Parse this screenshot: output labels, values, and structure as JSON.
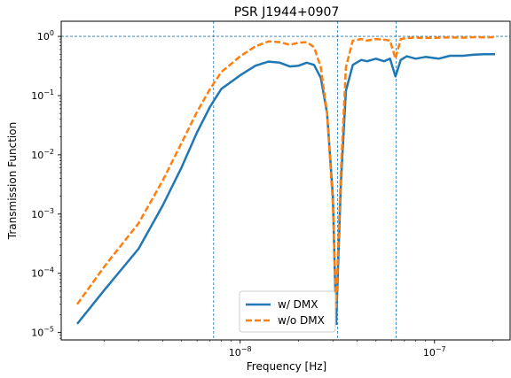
{
  "chart_data": {
    "type": "line",
    "title": "PSR J1944+0907",
    "xlabel": "Frequency [Hz]",
    "ylabel": "Transmission Function",
    "xscale": "log",
    "yscale": "log",
    "xlim": [
      1.2e-09,
      2.45e-07
    ],
    "ylim": [
      7.5e-06,
      1.8
    ],
    "x_ticks": [
      {
        "value": 1e-08,
        "base": "10",
        "exp": "−8"
      },
      {
        "value": 1e-07,
        "base": "10",
        "exp": "−7"
      }
    ],
    "y_ticks": [
      {
        "value": 1,
        "base": "10",
        "exp": "0"
      },
      {
        "value": 0.1,
        "base": "10",
        "exp": "−1"
      },
      {
        "value": 0.01,
        "base": "10",
        "exp": "−2"
      },
      {
        "value": 0.001,
        "base": "10",
        "exp": "−3"
      },
      {
        "value": 0.0001,
        "base": "10",
        "exp": "−4"
      },
      {
        "value": 1e-05,
        "base": "10",
        "exp": "−5"
      }
    ],
    "reference_lines": {
      "horizontal": [
        1.0
      ],
      "vertical": [
        7.3e-09,
        3.17e-08,
        6.35e-08
      ],
      "color": "#1f77b4",
      "style": "dotted"
    },
    "legend": {
      "position": "bottom-center"
    },
    "series": [
      {
        "name": "w/ DMX",
        "color": "#1f77b4",
        "style": "solid",
        "points": [
          [
            1.45e-09,
            1.4e-05
          ],
          [
            2e-09,
            5.2e-05
          ],
          [
            3e-09,
            0.00026
          ],
          [
            4e-09,
            0.0014
          ],
          [
            5e-09,
            0.0062
          ],
          [
            6e-09,
            0.024
          ],
          [
            7e-09,
            0.065
          ],
          [
            8e-09,
            0.13
          ],
          [
            1e-08,
            0.22
          ],
          [
            1.2e-08,
            0.32
          ],
          [
            1.4e-08,
            0.375
          ],
          [
            1.6e-08,
            0.36
          ],
          [
            1.8e-08,
            0.31
          ],
          [
            2e-08,
            0.32
          ],
          [
            2.2e-08,
            0.36
          ],
          [
            2.4e-08,
            0.33
          ],
          [
            2.6e-08,
            0.2
          ],
          [
            2.8e-08,
            0.05
          ],
          [
            3e-08,
            0.002
          ],
          [
            3.12e-08,
            1.4e-05
          ],
          [
            3.3e-08,
            0.0035
          ],
          [
            3.5e-08,
            0.12
          ],
          [
            3.8e-08,
            0.33
          ],
          [
            4.2e-08,
            0.4
          ],
          [
            4.5e-08,
            0.38
          ],
          [
            5e-08,
            0.42
          ],
          [
            5.5e-08,
            0.38
          ],
          [
            5.9e-08,
            0.42
          ],
          [
            6.3e-08,
            0.21
          ],
          [
            6.7e-08,
            0.4
          ],
          [
            7.2e-08,
            0.46
          ],
          [
            8e-08,
            0.42
          ],
          [
            9e-08,
            0.45
          ],
          [
            1.05e-07,
            0.42
          ],
          [
            1.2e-07,
            0.47
          ],
          [
            1.4e-07,
            0.47
          ],
          [
            1.6e-07,
            0.49
          ],
          [
            1.8e-07,
            0.5
          ],
          [
            2.05e-07,
            0.5
          ]
        ]
      },
      {
        "name": "w/o DMX",
        "color": "#ff7f0e",
        "style": "dashed",
        "points": [
          [
            1.45e-09,
            3e-05
          ],
          [
            2e-09,
            0.00013
          ],
          [
            3e-09,
            0.0007
          ],
          [
            4e-09,
            0.0037
          ],
          [
            5e-09,
            0.016
          ],
          [
            6e-09,
            0.053
          ],
          [
            7e-09,
            0.13
          ],
          [
            8e-09,
            0.25
          ],
          [
            1e-08,
            0.46
          ],
          [
            1.2e-08,
            0.68
          ],
          [
            1.4e-08,
            0.82
          ],
          [
            1.6e-08,
            0.8
          ],
          [
            1.8e-08,
            0.72
          ],
          [
            2e-08,
            0.78
          ],
          [
            2.2e-08,
            0.8
          ],
          [
            2.4e-08,
            0.66
          ],
          [
            2.6e-08,
            0.3
          ],
          [
            2.8e-08,
            0.05
          ],
          [
            3e-08,
            0.0015
          ],
          [
            3.12e-08,
            2.7e-05
          ],
          [
            3.3e-08,
            0.0055
          ],
          [
            3.5e-08,
            0.3
          ],
          [
            3.8e-08,
            0.85
          ],
          [
            4.2e-08,
            0.9
          ],
          [
            4.5e-08,
            0.85
          ],
          [
            5e-08,
            0.9
          ],
          [
            5.5e-08,
            0.88
          ],
          [
            5.9e-08,
            0.85
          ],
          [
            6.3e-08,
            0.42
          ],
          [
            6.7e-08,
            0.9
          ],
          [
            7.2e-08,
            0.94
          ],
          [
            8e-08,
            0.95
          ],
          [
            9e-08,
            0.94
          ],
          [
            1.05e-07,
            0.95
          ],
          [
            1.2e-07,
            0.96
          ],
          [
            1.4e-07,
            0.95
          ],
          [
            1.6e-07,
            0.97
          ],
          [
            1.8e-07,
            0.96
          ],
          [
            2.05e-07,
            0.97
          ]
        ]
      }
    ]
  }
}
